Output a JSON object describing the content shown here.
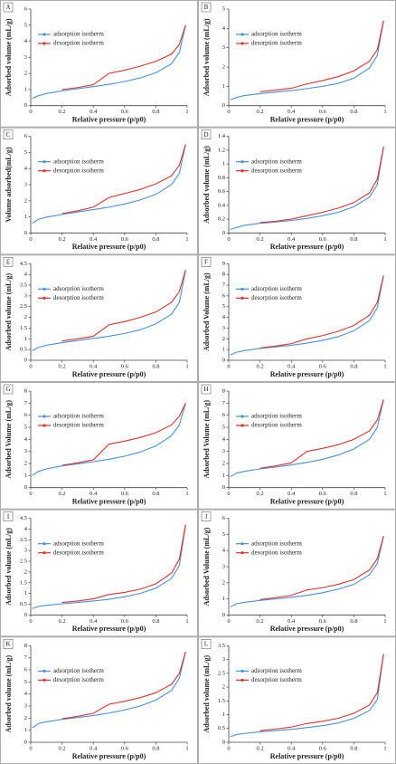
{
  "chart_data": [
    {
      "type": "line",
      "label": "A",
      "xlabel": "Relative pressure (p/p0)",
      "ylabel": "Adsorbed volume (mL/g)",
      "xlim": [
        0,
        1
      ],
      "xticks": [
        0,
        0.2,
        0.4,
        0.6,
        0.8,
        1
      ],
      "ylim": [
        0,
        6
      ],
      "yticks": [
        0,
        1,
        2,
        3,
        4,
        5,
        6
      ],
      "legend": "upper left",
      "x": [
        0.01,
        0.05,
        0.1,
        0.2,
        0.3,
        0.4,
        0.5,
        0.6,
        0.7,
        0.8,
        0.9,
        0.95,
        0.99
      ],
      "series": [
        {
          "name": "adsorption isotherm",
          "color": "#4a90d9",
          "values": [
            0.45,
            0.62,
            0.75,
            0.92,
            1.05,
            1.18,
            1.32,
            1.5,
            1.72,
            2.05,
            2.6,
            3.3,
            5.0
          ]
        },
        {
          "name": "desorption isotherm",
          "color": "#e03030",
          "values": [
            null,
            null,
            null,
            1.0,
            1.12,
            1.3,
            2.0,
            2.2,
            2.45,
            2.75,
            3.2,
            3.8,
            5.0
          ]
        }
      ]
    },
    {
      "type": "line",
      "label": "B",
      "xlabel": "Relative pressure (p/p0)",
      "ylabel": "Adsorbed volume (mL/g)",
      "xlim": [
        0,
        1
      ],
      "xticks": [
        0,
        0.2,
        0.4,
        0.6,
        0.8,
        1
      ],
      "ylim": [
        0,
        5
      ],
      "yticks": [
        0,
        1,
        2,
        3,
        4,
        5
      ],
      "legend": "upper left",
      "x": [
        0.01,
        0.05,
        0.1,
        0.2,
        0.3,
        0.4,
        0.5,
        0.6,
        0.7,
        0.8,
        0.9,
        0.95,
        0.99
      ],
      "series": [
        {
          "name": "adsorption isotherm",
          "color": "#4a90d9",
          "values": [
            0.3,
            0.42,
            0.52,
            0.62,
            0.7,
            0.78,
            0.88,
            1.0,
            1.15,
            1.42,
            1.95,
            2.6,
            4.4
          ]
        },
        {
          "name": "desorption isotherm",
          "color": "#e03030",
          "values": [
            null,
            null,
            null,
            0.72,
            0.8,
            0.9,
            1.12,
            1.3,
            1.5,
            1.8,
            2.3,
            2.9,
            4.4
          ]
        }
      ]
    },
    {
      "type": "line",
      "label": "C",
      "xlabel": "Relative pressure (p/p0)",
      "ylabel": "Volume adsorbed(mL/g)",
      "xlim": [
        0,
        1
      ],
      "xticks": [
        0,
        0.2,
        0.4,
        0.6,
        0.8,
        1
      ],
      "ylim": [
        0,
        6
      ],
      "yticks": [
        0,
        1,
        2,
        3,
        4,
        5,
        6
      ],
      "legend": "upper left",
      "x": [
        0.01,
        0.05,
        0.1,
        0.2,
        0.3,
        0.4,
        0.5,
        0.6,
        0.7,
        0.8,
        0.9,
        0.95,
        0.99
      ],
      "series": [
        {
          "name": "adsorption isotherm",
          "color": "#4a90d9",
          "values": [
            0.6,
            0.85,
            0.98,
            1.15,
            1.3,
            1.45,
            1.6,
            1.8,
            2.05,
            2.4,
            3.0,
            3.7,
            5.5
          ]
        },
        {
          "name": "desorption isotherm",
          "color": "#e03030",
          "values": [
            null,
            null,
            null,
            1.2,
            1.38,
            1.6,
            2.2,
            2.45,
            2.7,
            3.05,
            3.55,
            4.2,
            5.5
          ]
        }
      ]
    },
    {
      "type": "line",
      "label": "D",
      "xlabel": "Relative pressure (p/p0)",
      "ylabel": "Adsorbed volume (mL/g)",
      "xlim": [
        0,
        1
      ],
      "xticks": [
        0,
        0.2,
        0.4,
        0.6,
        0.8,
        1
      ],
      "ylim": [
        0,
        1.4
      ],
      "yticks": [
        0,
        0.2,
        0.4,
        0.6,
        0.8,
        1,
        1.2,
        1.4
      ],
      "legend": "upper left",
      "x": [
        0.01,
        0.05,
        0.1,
        0.2,
        0.3,
        0.4,
        0.5,
        0.6,
        0.7,
        0.8,
        0.9,
        0.95,
        0.99
      ],
      "series": [
        {
          "name": "adsorption isotherm",
          "color": "#4a90d9",
          "values": [
            0.05,
            0.08,
            0.11,
            0.14,
            0.16,
            0.18,
            0.21,
            0.25,
            0.3,
            0.38,
            0.52,
            0.7,
            1.25
          ]
        },
        {
          "name": "desorption isotherm",
          "color": "#e03030",
          "values": [
            null,
            null,
            null,
            0.15,
            0.17,
            0.2,
            0.25,
            0.3,
            0.36,
            0.44,
            0.58,
            0.78,
            1.25
          ]
        }
      ]
    },
    {
      "type": "line",
      "label": "E",
      "xlabel": "Relative pressure (p/p0)",
      "ylabel": "Adsorbed volume (mL/g)",
      "xlim": [
        0,
        1
      ],
      "xticks": [
        0,
        0.2,
        0.4,
        0.6,
        0.8,
        1
      ],
      "ylim": [
        0,
        4.5
      ],
      "yticks": [
        0,
        0.5,
        1,
        1.5,
        2,
        2.5,
        3,
        3.5,
        4,
        4.5
      ],
      "legend": "upper left",
      "x": [
        0.01,
        0.05,
        0.1,
        0.2,
        0.3,
        0.4,
        0.5,
        0.6,
        0.7,
        0.8,
        0.9,
        0.95,
        0.99
      ],
      "series": [
        {
          "name": "adsorption isotherm",
          "color": "#4a90d9",
          "values": [
            0.45,
            0.6,
            0.7,
            0.82,
            0.92,
            1.02,
            1.12,
            1.25,
            1.42,
            1.7,
            2.15,
            2.7,
            4.2
          ]
        },
        {
          "name": "desorption isotherm",
          "color": "#e03030",
          "values": [
            null,
            null,
            null,
            0.9,
            1.0,
            1.12,
            1.65,
            1.8,
            2.0,
            2.25,
            2.7,
            3.2,
            4.2
          ]
        }
      ]
    },
    {
      "type": "line",
      "label": "F",
      "xlabel": "Relative pressure (p/p0)",
      "ylabel": "Adsorbed Volume (mL/g)",
      "xlim": [
        0,
        1
      ],
      "xticks": [
        0,
        0.2,
        0.4,
        0.6,
        0.8,
        1
      ],
      "ylim": [
        0,
        9
      ],
      "yticks": [
        0,
        1,
        2,
        3,
        4,
        5,
        6,
        7,
        8,
        9
      ],
      "legend": "upper left",
      "x": [
        0.01,
        0.05,
        0.1,
        0.2,
        0.3,
        0.4,
        0.5,
        0.6,
        0.7,
        0.8,
        0.9,
        0.95,
        0.99
      ],
      "series": [
        {
          "name": "adsorption isotherm",
          "color": "#4a90d9",
          "values": [
            0.5,
            0.75,
            0.9,
            1.1,
            1.25,
            1.4,
            1.6,
            1.85,
            2.2,
            2.75,
            3.7,
            4.9,
            7.9
          ]
        },
        {
          "name": "desorption isotherm",
          "color": "#e03030",
          "values": [
            null,
            null,
            null,
            1.15,
            1.32,
            1.55,
            2.0,
            2.3,
            2.7,
            3.25,
            4.2,
            5.4,
            7.9
          ]
        }
      ]
    },
    {
      "type": "line",
      "label": "G",
      "xlabel": "Relative pressure (p/p0)",
      "ylabel": "Adsorbed Volume (mL/g)",
      "xlim": [
        0,
        1
      ],
      "xticks": [
        0,
        0.2,
        0.4,
        0.6,
        0.8,
        1
      ],
      "ylim": [
        0,
        8
      ],
      "yticks": [
        0,
        1,
        2,
        3,
        4,
        5,
        6,
        7,
        8
      ],
      "legend": "upper left",
      "x": [
        0.01,
        0.05,
        0.1,
        0.2,
        0.3,
        0.4,
        0.5,
        0.6,
        0.7,
        0.8,
        0.9,
        0.95,
        0.99
      ],
      "series": [
        {
          "name": "adsorption isotherm",
          "color": "#4a90d9",
          "values": [
            1.0,
            1.35,
            1.55,
            1.8,
            1.97,
            2.15,
            2.35,
            2.6,
            2.95,
            3.45,
            4.3,
            5.2,
            7.0
          ]
        },
        {
          "name": "desorption isotherm",
          "color": "#e03030",
          "values": [
            null,
            null,
            null,
            1.85,
            2.05,
            2.3,
            3.6,
            3.85,
            4.15,
            4.55,
            5.2,
            5.9,
            7.0
          ]
        }
      ]
    },
    {
      "type": "line",
      "label": "H",
      "xlabel": "Relative pressure (p/p0)",
      "ylabel": "Adsorbed Volume (mL/g)",
      "xlim": [
        0,
        1
      ],
      "xticks": [
        0,
        0.2,
        0.4,
        0.6,
        0.8,
        1
      ],
      "ylim": [
        0,
        8
      ],
      "yticks": [
        0,
        1,
        2,
        3,
        4,
        5,
        6,
        7,
        8
      ],
      "legend": "upper left",
      "x": [
        0.01,
        0.05,
        0.1,
        0.2,
        0.3,
        0.4,
        0.5,
        0.6,
        0.7,
        0.8,
        0.9,
        0.95,
        0.99
      ],
      "series": [
        {
          "name": "adsorption isotherm",
          "color": "#4a90d9",
          "values": [
            0.9,
            1.2,
            1.35,
            1.55,
            1.7,
            1.88,
            2.08,
            2.35,
            2.7,
            3.2,
            4.0,
            5.0,
            7.3
          ]
        },
        {
          "name": "desorption isotherm",
          "color": "#e03030",
          "values": [
            null,
            null,
            null,
            1.6,
            1.8,
            2.05,
            3.0,
            3.25,
            3.55,
            4.0,
            4.7,
            5.6,
            7.3
          ]
        }
      ]
    },
    {
      "type": "line",
      "label": "I",
      "xlabel": "Relative pressure (p/p0)",
      "ylabel": "Adsorbed volume (mL/g)",
      "xlim": [
        0,
        1
      ],
      "xticks": [
        0,
        0.2,
        0.4,
        0.6,
        0.8,
        1
      ],
      "ylim": [
        0,
        4.5
      ],
      "yticks": [
        0,
        0.5,
        1,
        1.5,
        2,
        2.5,
        3,
        3.5,
        4,
        4.5
      ],
      "legend": "upper left",
      "x": [
        0.01,
        0.05,
        0.1,
        0.2,
        0.3,
        0.4,
        0.5,
        0.6,
        0.7,
        0.8,
        0.9,
        0.95,
        0.99
      ],
      "series": [
        {
          "name": "adsorption isotherm",
          "color": "#4a90d9",
          "values": [
            0.3,
            0.4,
            0.45,
            0.52,
            0.58,
            0.65,
            0.73,
            0.85,
            1.0,
            1.25,
            1.7,
            2.3,
            4.2
          ]
        },
        {
          "name": "desorption isotherm",
          "color": "#e03030",
          "values": [
            null,
            null,
            null,
            0.58,
            0.65,
            0.75,
            0.95,
            1.05,
            1.2,
            1.45,
            1.95,
            2.6,
            4.2
          ]
        }
      ]
    },
    {
      "type": "line",
      "label": "J",
      "xlabel": "Relative pressure (p/p0)",
      "ylabel": "Adsorbed Volume (mL/g)",
      "xlim": [
        0,
        1
      ],
      "xticks": [
        0,
        0.2,
        0.4,
        0.6,
        0.8,
        1
      ],
      "ylim": [
        0,
        6
      ],
      "yticks": [
        0,
        1,
        2,
        3,
        4,
        5,
        6
      ],
      "legend": "upper left",
      "x": [
        0.01,
        0.05,
        0.1,
        0.2,
        0.3,
        0.4,
        0.5,
        0.6,
        0.7,
        0.8,
        0.9,
        0.95,
        0.99
      ],
      "series": [
        {
          "name": "adsorption isotherm",
          "color": "#4a90d9",
          "values": [
            0.5,
            0.7,
            0.78,
            0.9,
            1.0,
            1.1,
            1.22,
            1.38,
            1.6,
            1.9,
            2.5,
            3.2,
            4.9
          ]
        },
        {
          "name": "desorption isotherm",
          "color": "#e03030",
          "values": [
            null,
            null,
            null,
            0.95,
            1.08,
            1.22,
            1.55,
            1.7,
            1.9,
            2.2,
            2.8,
            3.5,
            4.9
          ]
        }
      ]
    },
    {
      "type": "line",
      "label": "K",
      "xlabel": "Relative pressure (p/p0)",
      "ylabel": "Adsorbed volume (mL/g)",
      "xlim": [
        0,
        1
      ],
      "xticks": [
        0,
        0.2,
        0.4,
        0.6,
        0.8,
        1
      ],
      "ylim": [
        0,
        8
      ],
      "yticks": [
        0,
        1,
        2,
        3,
        4,
        5,
        6,
        7,
        8
      ],
      "legend": "upper left",
      "x": [
        0.01,
        0.05,
        0.1,
        0.2,
        0.3,
        0.4,
        0.5,
        0.6,
        0.7,
        0.8,
        0.9,
        0.95,
        0.99
      ],
      "series": [
        {
          "name": "adsorption isotherm",
          "color": "#4a90d9",
          "values": [
            1.2,
            1.55,
            1.7,
            1.9,
            2.05,
            2.22,
            2.42,
            2.68,
            3.0,
            3.5,
            4.3,
            5.3,
            7.5
          ]
        },
        {
          "name": "desorption isotherm",
          "color": "#e03030",
          "values": [
            null,
            null,
            null,
            1.95,
            2.15,
            2.4,
            3.15,
            3.4,
            3.7,
            4.1,
            4.8,
            5.7,
            7.5
          ]
        }
      ]
    },
    {
      "type": "line",
      "label": "L",
      "xlabel": "Relative pressure (p/p0)",
      "ylabel": "Adsorbed volume (mL/g)",
      "xlim": [
        0,
        1
      ],
      "xticks": [
        0,
        0.2,
        0.4,
        0.6,
        0.8,
        1
      ],
      "ylim": [
        0,
        3.5
      ],
      "yticks": [
        0,
        0.5,
        1,
        1.5,
        2,
        2.5,
        3,
        3.5
      ],
      "legend": "upper left",
      "x": [
        0.01,
        0.05,
        0.1,
        0.2,
        0.3,
        0.4,
        0.5,
        0.6,
        0.7,
        0.8,
        0.9,
        0.95,
        0.99
      ],
      "series": [
        {
          "name": "adsorption isotherm",
          "color": "#4a90d9",
          "values": [
            0.2,
            0.28,
            0.32,
            0.38,
            0.42,
            0.47,
            0.53,
            0.6,
            0.7,
            0.87,
            1.15,
            1.55,
            3.2
          ]
        },
        {
          "name": "desorption isotherm",
          "color": "#e03030",
          "values": [
            null,
            null,
            null,
            0.42,
            0.48,
            0.55,
            0.68,
            0.76,
            0.87,
            1.05,
            1.35,
            1.8,
            3.2
          ]
        }
      ]
    }
  ]
}
